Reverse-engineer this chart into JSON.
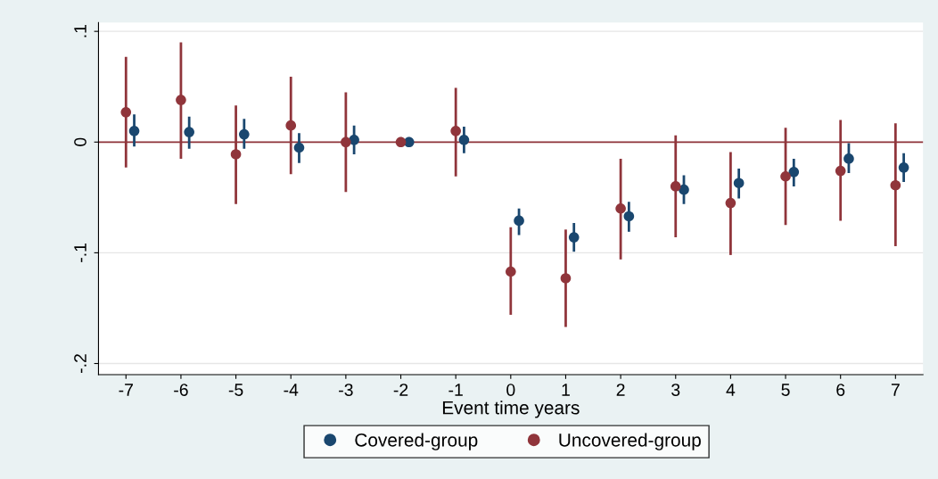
{
  "chart_data": {
    "type": "scatter",
    "xlabel": "Event time years",
    "xlim": [
      -7.5,
      7.5
    ],
    "xticks": [
      -7,
      -6,
      -5,
      -4,
      -3,
      -2,
      -1,
      0,
      1,
      2,
      3,
      4,
      5,
      6,
      7
    ],
    "ylim": [
      -0.21,
      0.108
    ],
    "yticks": [
      {
        "value": 0.1,
        "label": ".1"
      },
      0,
      {
        "value": -0.1,
        "label": "-.1"
      },
      {
        "value": -0.2,
        "label": "-.2"
      }
    ],
    "grid": "y",
    "legend": "bottom",
    "marker": "circle",
    "ref_lines": [
      {
        "axis": "y",
        "value": 0,
        "color": "#90353b"
      }
    ],
    "series": [
      {
        "name": "Covered-group",
        "color": "#1a476f",
        "x": [
          -6.85,
          -5.85,
          -4.85,
          -3.85,
          -2.85,
          -1.85,
          -0.85,
          0.15,
          1.15,
          2.15,
          3.15,
          4.15,
          5.15,
          6.15,
          7.15
        ],
        "values": [
          0.01,
          0.009,
          0.007,
          -0.005,
          0.002,
          0,
          0.002,
          -0.071,
          -0.086,
          -0.067,
          -0.043,
          -0.037,
          -0.027,
          -0.015,
          -0.023
        ],
        "errors": [
          [
            -0.004,
            0.025
          ],
          [
            -0.006,
            0.023
          ],
          [
            -0.006,
            0.021
          ],
          [
            -0.019,
            0.008
          ],
          [
            -0.011,
            0.015
          ],
          null,
          [
            -0.01,
            0.014
          ],
          [
            -0.084,
            -0.06
          ],
          [
            -0.099,
            -0.073
          ],
          [
            -0.081,
            -0.054
          ],
          [
            -0.056,
            -0.03
          ],
          [
            -0.051,
            -0.024
          ],
          [
            -0.04,
            -0.015
          ],
          [
            -0.028,
            -0.001
          ],
          [
            -0.036,
            -0.01
          ]
        ]
      },
      {
        "name": "Uncovered-group",
        "color": "#90353b",
        "x": [
          -7,
          -6,
          -5,
          -4,
          -3,
          -2,
          -1,
          0,
          1,
          2,
          3,
          4,
          5,
          6,
          7
        ],
        "values": [
          0.027,
          0.038,
          -0.011,
          0.015,
          0,
          0,
          0.01,
          -0.117,
          -0.123,
          -0.06,
          -0.04,
          -0.055,
          -0.031,
          -0.026,
          -0.039
        ],
        "errors": [
          [
            -0.023,
            0.077
          ],
          [
            -0.015,
            0.09
          ],
          [
            -0.056,
            0.033
          ],
          [
            -0.029,
            0.059
          ],
          [
            -0.045,
            0.045
          ],
          null,
          [
            -0.031,
            0.049
          ],
          [
            -0.156,
            -0.077
          ],
          [
            -0.167,
            -0.079
          ],
          [
            -0.106,
            -0.015
          ],
          [
            -0.086,
            0.006
          ],
          [
            -0.102,
            -0.009
          ],
          [
            -0.075,
            0.013
          ],
          [
            -0.071,
            0.02
          ],
          [
            -0.094,
            0.017
          ]
        ]
      }
    ]
  }
}
